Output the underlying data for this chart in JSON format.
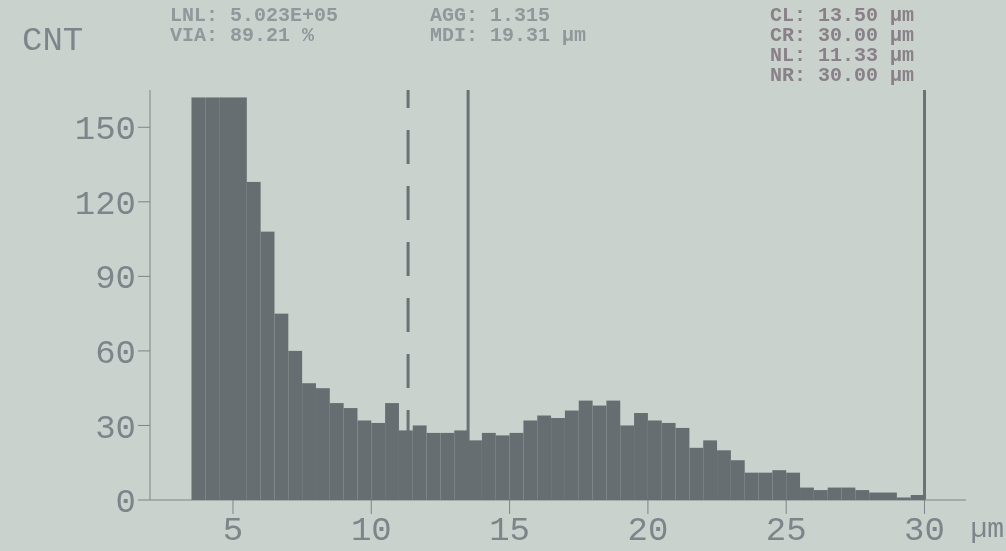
{
  "chart_data": {
    "type": "histogram",
    "ylabel": "CNT",
    "xlabel": "µm",
    "annotations": [
      "LNL: 5.023E+05",
      "VIA: 89.21 %",
      "AGG: 1.315",
      "MDI: 19.31 µm",
      "CL: 13.50 µm",
      "CR: 30.00 µm",
      "NL: 11.33 µm",
      "NR: 30.00 µm"
    ],
    "bins": [
      3.5,
      4,
      4.5,
      5,
      5.5,
      6,
      6.5,
      7,
      7.5,
      8,
      8.5,
      9,
      9.5,
      10,
      10.5,
      11,
      11.5,
      12,
      12.5,
      13,
      13.5,
      14,
      14.5,
      15,
      15.5,
      16,
      16.5,
      17,
      17.5,
      18,
      18.5,
      19,
      19.5,
      20,
      20.5,
      21,
      21.5,
      22,
      22.5,
      23,
      23.5,
      24,
      24.5,
      25,
      25.5,
      26,
      26.5,
      27,
      27.5,
      28,
      28.5,
      29,
      29.5,
      30
    ],
    "values": [
      162,
      162,
      162,
      162,
      128,
      108,
      75,
      60,
      47,
      45,
      39,
      37,
      32,
      31,
      39,
      28,
      30,
      27,
      27,
      28,
      24,
      27,
      26,
      27,
      32,
      34,
      33,
      36,
      40,
      38,
      40,
      30,
      35,
      32,
      31,
      29,
      21,
      24,
      20,
      16,
      11,
      11,
      12,
      11,
      5,
      4,
      5,
      5,
      4,
      3,
      3,
      1,
      2
    ],
    "color": "#666e72",
    "xlim": [
      2,
      31.5
    ],
    "xticks": [
      5,
      10,
      15,
      20,
      25,
      30
    ],
    "ylim": [
      0,
      165
    ],
    "yticks": [
      0,
      30,
      60,
      90,
      120,
      150
    ],
    "ref_lines": [
      {
        "axis": "x",
        "value": 11.33,
        "line_style": "dashed",
        "color": "#6a7276"
      },
      {
        "axis": "x",
        "value": 13.5,
        "line_style": "solid",
        "color": "#6a7276"
      },
      {
        "axis": "x",
        "value": 30,
        "line_style": "solid",
        "color": "#6a7276"
      }
    ]
  }
}
